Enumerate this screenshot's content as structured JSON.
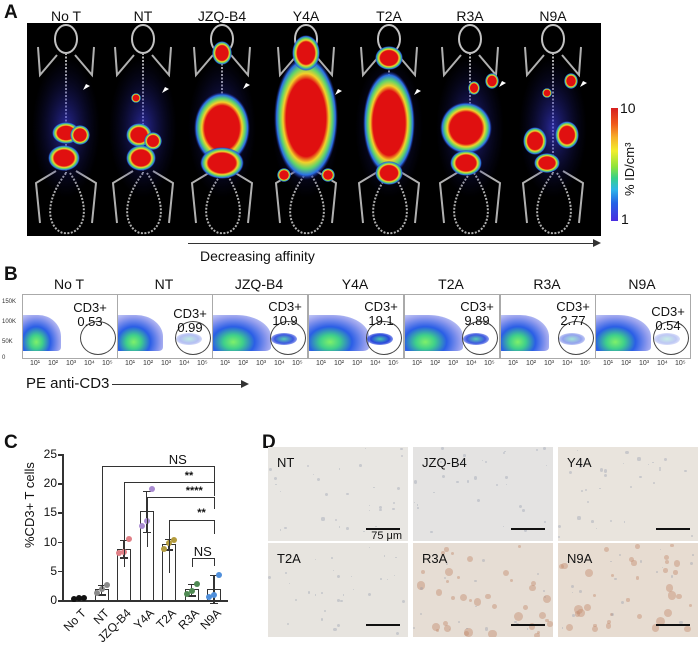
{
  "figure": {
    "panels": {
      "A": {
        "letter": "A",
        "groups": [
          "No T",
          "NT",
          "JZQ-B4",
          "Y4A",
          "T2A",
          "R3A",
          "N9A"
        ],
        "colorbar": {
          "max_label": "10",
          "min_label": "1",
          "unit_label": "% ID/cm³",
          "colors": [
            "#d61f1f",
            "#f7b02a",
            "#f2ee2c",
            "#8ee43c",
            "#2fb6e8",
            "#2463e6",
            "#4a2de0"
          ]
        },
        "arrow_label": "Decreasing affinity",
        "marker": "white arrowhead indicating tumor"
      },
      "B": {
        "letter": "B",
        "groups": [
          "No T",
          "NT",
          "JZQ-B4",
          "Y4A",
          "T2A",
          "R3A",
          "N9A"
        ],
        "gate_label": "CD3+",
        "gate_values": [
          "0.53",
          "0.99",
          "10.9",
          "19.1",
          "9.89",
          "2.77",
          "0.54"
        ],
        "y_ticks": [
          "150K",
          "100K",
          "50K",
          "0"
        ],
        "x_ticks": [
          "10¹",
          "10²",
          "10³",
          "10⁴",
          "10⁵"
        ],
        "x_axis_label": "PE anti-CD3"
      },
      "C": {
        "letter": "C",
        "y_label": "%CD3+ T cells",
        "y_ticks": [
          "25",
          "20",
          "15",
          "10",
          "5",
          "0"
        ],
        "categories": [
          "No T",
          "NT",
          "JZQ-B4",
          "Y4A",
          "T2A",
          "R3A",
          "N9A"
        ],
        "significance": [
          {
            "from": "NT",
            "to": "N9A",
            "label": "NS"
          },
          {
            "from": "JZQ-B4",
            "to": "N9A",
            "label": "**"
          },
          {
            "from": "Y4A",
            "to": "N9A",
            "label": "****"
          },
          {
            "from": "T2A",
            "to": "N9A",
            "label": "**"
          },
          {
            "from": "R3A",
            "to": "N9A",
            "label": "NS"
          }
        ]
      },
      "D": {
        "letter": "D",
        "tiles": [
          "NT",
          "JZQ-B4",
          "Y4A",
          "T2A",
          "R3A",
          "N9A"
        ],
        "scale_bar_label": "75 μm"
      }
    }
  },
  "chart_data": [
    {
      "type": "bar",
      "title": "",
      "xlabel": "",
      "ylabel": "%CD3+ T cells",
      "ylim": [
        0,
        25
      ],
      "categories": [
        "No T",
        "NT",
        "JZQ-B4",
        "Y4A",
        "T2A",
        "R3A",
        "N9A"
      ],
      "values": [
        0.3,
        1.8,
        8.8,
        15.2,
        9.6,
        1.8,
        1.9
      ],
      "error_sd": [
        0.1,
        0.8,
        1.5,
        3.5,
        0.9,
        1.0,
        2.4
      ],
      "points": [
        [
          0.2,
          0.3,
          0.4
        ],
        [
          1.2,
          1.8,
          2.5
        ],
        [
          8.0,
          8.2,
          10.4
        ],
        [
          12.6,
          13.5,
          19.0
        ],
        [
          8.8,
          9.8,
          10.2
        ],
        [
          1.0,
          1.5,
          2.8
        ],
        [
          0.5,
          0.8,
          4.3
        ]
      ],
      "colors": [
        "#111111",
        "#8a8a8a",
        "#e07f86",
        "#a98bd1",
        "#b39b3d",
        "#4f8a53",
        "#4f8fdb"
      ],
      "annotations": [
        "NT vs N9A: NS",
        "JZQ-B4 vs N9A: **",
        "Y4A vs N9A: ****",
        "T2A vs N9A: **",
        "R3A vs N9A: NS"
      ],
      "grid": false
    },
    {
      "type": "scatter",
      "title": "Flow cytometry CD3+ gate (%)",
      "categories": [
        "No T",
        "NT",
        "JZQ-B4",
        "Y4A",
        "T2A",
        "R3A",
        "N9A"
      ],
      "values": [
        0.53,
        0.99,
        10.9,
        19.1,
        9.89,
        2.77,
        0.54
      ],
      "xlabel": "PE anti-CD3",
      "x_ticks": [
        "10^1",
        "10^2",
        "10^3",
        "10^4",
        "10^5"
      ],
      "y_ticks": [
        "0",
        "50K",
        "100K",
        "150K"
      ]
    }
  ]
}
